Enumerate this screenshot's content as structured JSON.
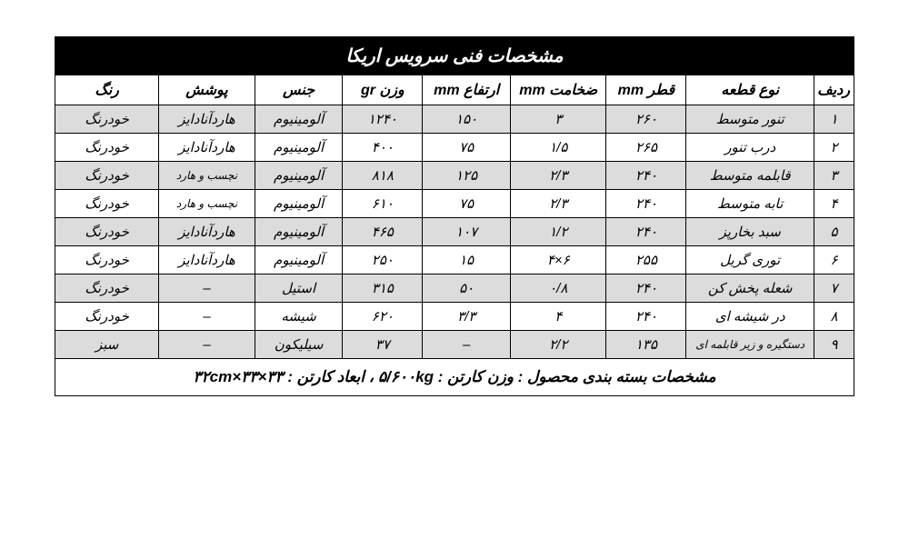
{
  "table": {
    "title": "مشخصات فنی سرویس اریکا",
    "columns": [
      "ردیف",
      "نوع قطعه",
      "قطر mm",
      "ضخامت mm",
      "ارتفاع mm",
      "وزن gr",
      "جنس",
      "پوشش",
      "رنگ"
    ],
    "rows": [
      {
        "idx": "۱",
        "type": "تنور متوسط",
        "dia": "۲۶۰",
        "thk": "۳",
        "hgt": "۱۵۰",
        "wgt": "۱۲۴۰",
        "mat": "آلومینیوم",
        "coat": "هاردآنادایز",
        "color": "خودرنگ",
        "small": false
      },
      {
        "idx": "۲",
        "type": "درب تنور",
        "dia": "۲۶۵",
        "thk": "۱/۵",
        "hgt": "۷۵",
        "wgt": "۴۰۰",
        "mat": "آلومینیوم",
        "coat": "هاردآنادایز",
        "color": "خودرنگ",
        "small": false
      },
      {
        "idx": "۳",
        "type": "قابلمه متوسط",
        "dia": "۲۴۰",
        "thk": "۲/۳",
        "hgt": "۱۲۵",
        "wgt": "۸۱۸",
        "mat": "آلومینیوم",
        "coat": "نچسب و هارد",
        "color": "خودرنگ",
        "small": true
      },
      {
        "idx": "۴",
        "type": "تابه متوسط",
        "dia": "۲۴۰",
        "thk": "۲/۳",
        "hgt": "۷۵",
        "wgt": "۶۱۰",
        "mat": "آلومینیوم",
        "coat": "نچسب و هارد",
        "color": "خودرنگ",
        "small": true
      },
      {
        "idx": "۵",
        "type": "سبد بخارپز",
        "dia": "۲۴۰",
        "thk": "۱/۲",
        "hgt": "۱۰۷",
        "wgt": "۴۶۵",
        "mat": "آلومینیوم",
        "coat": "هاردآنادایز",
        "color": "خودرنگ",
        "small": false
      },
      {
        "idx": "۶",
        "type": "توری گریل",
        "dia": "۲۵۵",
        "thk": "۶×۴",
        "hgt": "۱۵",
        "wgt": "۲۵۰",
        "mat": "آلومینیوم",
        "coat": "هاردآنادایز",
        "color": "خودرنگ",
        "small": false
      },
      {
        "idx": "۷",
        "type": "شعله پخش کن",
        "dia": "۲۴۰",
        "thk": "۰/۸",
        "hgt": "۵۰",
        "wgt": "۳۱۵",
        "mat": "استیل",
        "coat": "–",
        "color": "خودرنگ",
        "small": false
      },
      {
        "idx": "۸",
        "type": "در شیشه ای",
        "dia": "۲۴۰",
        "thk": "۴",
        "hgt": "۳/۳",
        "wgt": "۶۲۰",
        "mat": "شیشه",
        "coat": "–",
        "color": "خودرنگ",
        "small": false
      },
      {
        "idx": "۹",
        "type": "دستگیره و زیر قابلمه ای",
        "dia": "۱۳۵",
        "thk": "۲/۲",
        "hgt": "–",
        "wgt": "۳۷",
        "mat": "سیلیکون",
        "coat": "–",
        "color": "سبز",
        "small": false,
        "typeSmall": true
      }
    ],
    "footer": "مشخصات بسته بندی محصول :   وزن کارتن : ۵/۶۰۰kg  ،  ابعاد کارتن : ۳۳×۳۳×۳۲cm"
  },
  "colors": {
    "title_bg": "#000000",
    "title_fg": "#ffffff",
    "row_alt_bg": "#dcdcdc",
    "row_bg": "#ffffff",
    "border": "#000000"
  }
}
